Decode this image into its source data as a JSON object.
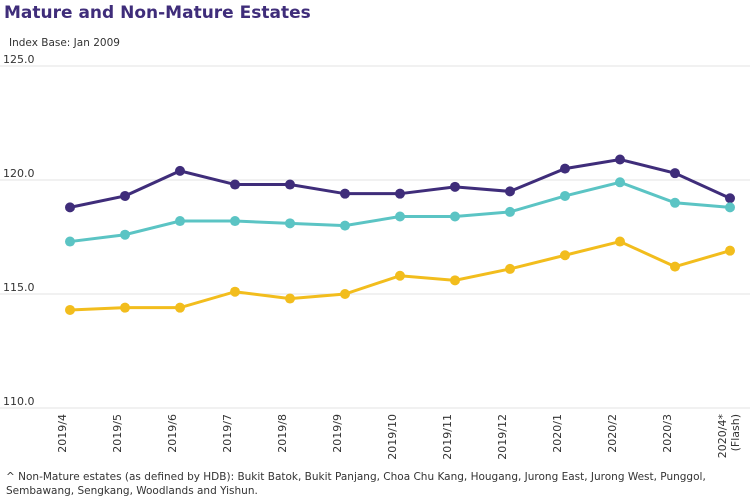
{
  "chart_data": {
    "type": "line",
    "title": "Mature and Non-Mature Estates",
    "subtitle": "Index Base: Jan 2009",
    "footnote": "^ Non-Mature estates (as defined by HDB): Bukit Batok, Bukit Panjang, Choa Chu Kang, Hougang, Jurong East, Jurong West, Punggol, Sembawang, Sengkang, Woodlands and Yishun.",
    "categories": [
      "2019/4",
      "2019/5",
      "2019/6",
      "2019/7",
      "2019/8",
      "2019/9",
      "2019/10",
      "2019/11",
      "2019/12",
      "2020/1",
      "2020/2",
      "2020/3",
      "2020/4*\n(Flash)"
    ],
    "series": [
      {
        "color": "#3f2d7a",
        "values": [
          118.8,
          119.3,
          120.4,
          119.8,
          119.8,
          119.4,
          119.4,
          119.7,
          119.5,
          120.5,
          120.9,
          120.3,
          119.2
        ]
      },
      {
        "color": "#5bc4c4",
        "values": [
          117.3,
          117.6,
          118.2,
          118.2,
          118.1,
          118.0,
          118.4,
          118.4,
          118.6,
          119.3,
          119.9,
          119.0,
          118.8
        ]
      },
      {
        "color": "#f2bd1d",
        "values": [
          114.3,
          114.4,
          114.4,
          115.1,
          114.8,
          115.0,
          115.8,
          115.6,
          116.1,
          116.7,
          117.3,
          116.2,
          116.9
        ]
      }
    ],
    "ylim": [
      110,
      125
    ],
    "yticks": [
      {
        "value": 110,
        "label": "110.0"
      },
      {
        "value": 115,
        "label": "115.0"
      },
      {
        "value": 120,
        "label": "120.0"
      },
      {
        "value": 125,
        "label": "125.0"
      }
    ],
    "grid": true
  }
}
